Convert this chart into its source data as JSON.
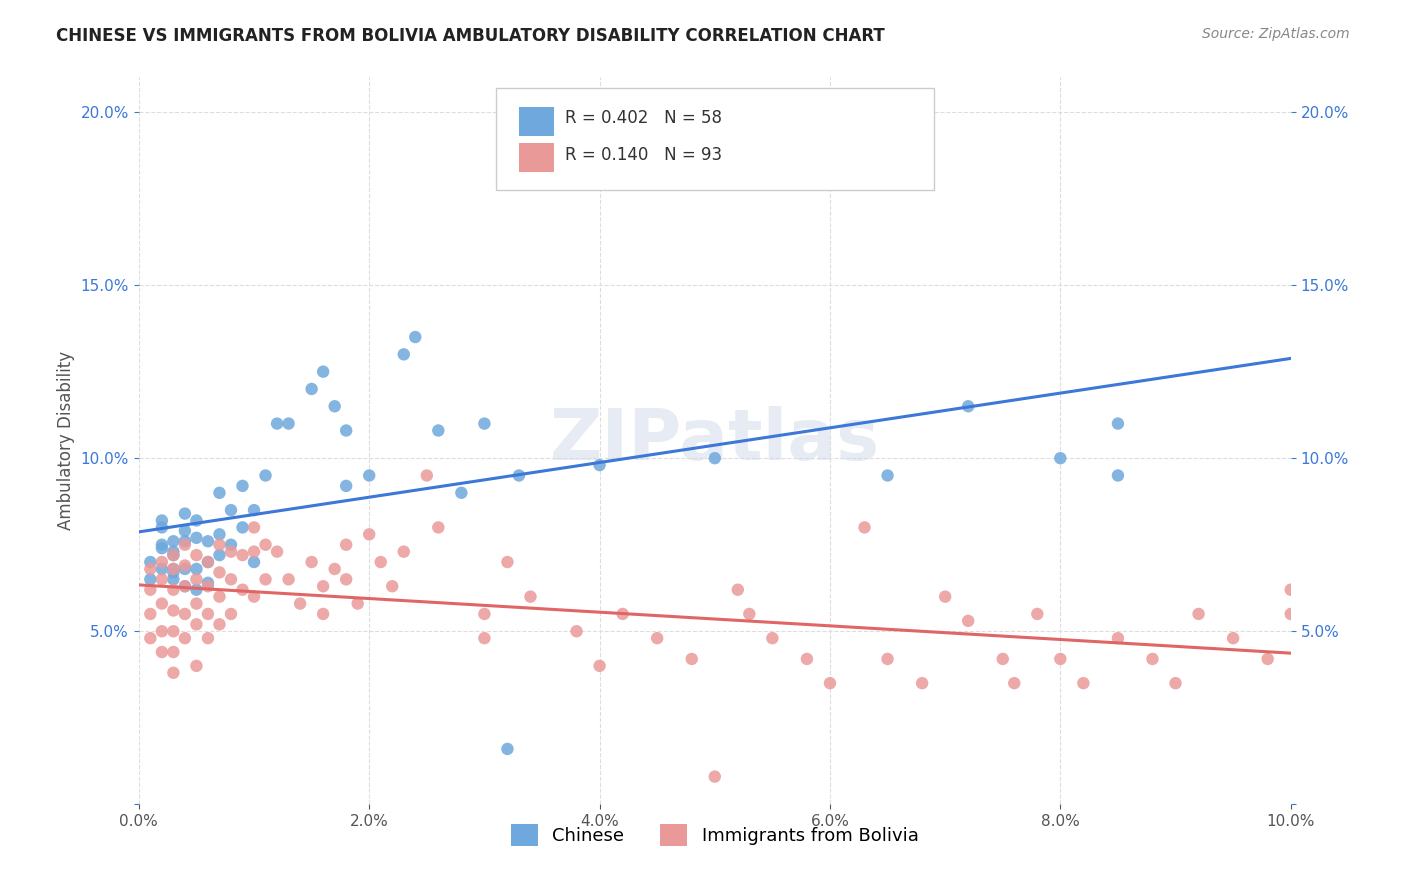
{
  "title": "CHINESE VS IMMIGRANTS FROM BOLIVIA AMBULATORY DISABILITY CORRELATION CHART",
  "source": "Source: ZipAtlas.com",
  "ylabel": "Ambulatory Disability",
  "xlabel": "",
  "watermark": "ZIPatlas",
  "xlim": [
    0.0,
    0.1
  ],
  "ylim": [
    0.0,
    0.21
  ],
  "xticks": [
    0.0,
    0.02,
    0.04,
    0.06,
    0.08,
    0.1
  ],
  "yticks": [
    0.0,
    0.05,
    0.1,
    0.15,
    0.2
  ],
  "xticklabels": [
    "0.0%",
    "2.0%",
    "4.0%",
    "6.0%",
    "8.0%",
    "10.0%"
  ],
  "yticklabels": [
    "",
    "5.0%",
    "10.0%",
    "15.0%",
    "20.0%"
  ],
  "legend1_label": "Chinese",
  "legend2_label": "Immigrants from Bolivia",
  "blue_R": "0.402",
  "blue_N": "58",
  "pink_R": "0.140",
  "pink_N": "93",
  "blue_color": "#6fa8dc",
  "pink_color": "#ea9999",
  "blue_line_color": "#3c78d8",
  "pink_line_color": "#e06666",
  "background_color": "#ffffff",
  "grid_color": "#dddddd",
  "blue_scatter_x": [
    0.001,
    0.001,
    0.002,
    0.002,
    0.002,
    0.002,
    0.002,
    0.003,
    0.003,
    0.003,
    0.003,
    0.003,
    0.003,
    0.004,
    0.004,
    0.004,
    0.004,
    0.004,
    0.005,
    0.005,
    0.005,
    0.005,
    0.006,
    0.006,
    0.006,
    0.007,
    0.007,
    0.007,
    0.008,
    0.008,
    0.009,
    0.009,
    0.01,
    0.01,
    0.011,
    0.012,
    0.013,
    0.015,
    0.016,
    0.017,
    0.018,
    0.018,
    0.02,
    0.023,
    0.024,
    0.026,
    0.028,
    0.03,
    0.032,
    0.033,
    0.04,
    0.048,
    0.05,
    0.065,
    0.072,
    0.08,
    0.085,
    0.085
  ],
  "blue_scatter_y": [
    0.07,
    0.065,
    0.075,
    0.08,
    0.082,
    0.074,
    0.068,
    0.072,
    0.076,
    0.068,
    0.065,
    0.073,
    0.067,
    0.079,
    0.084,
    0.076,
    0.068,
    0.063,
    0.082,
    0.077,
    0.068,
    0.062,
    0.076,
    0.07,
    0.064,
    0.09,
    0.078,
    0.072,
    0.085,
    0.075,
    0.092,
    0.08,
    0.085,
    0.07,
    0.095,
    0.11,
    0.11,
    0.12,
    0.125,
    0.115,
    0.108,
    0.092,
    0.095,
    0.13,
    0.135,
    0.108,
    0.09,
    0.11,
    0.016,
    0.095,
    0.098,
    0.18,
    0.1,
    0.095,
    0.115,
    0.1,
    0.095,
    0.11
  ],
  "pink_scatter_x": [
    0.001,
    0.001,
    0.001,
    0.001,
    0.002,
    0.002,
    0.002,
    0.002,
    0.002,
    0.003,
    0.003,
    0.003,
    0.003,
    0.003,
    0.003,
    0.003,
    0.004,
    0.004,
    0.004,
    0.004,
    0.004,
    0.005,
    0.005,
    0.005,
    0.005,
    0.005,
    0.006,
    0.006,
    0.006,
    0.006,
    0.007,
    0.007,
    0.007,
    0.007,
    0.008,
    0.008,
    0.008,
    0.009,
    0.009,
    0.01,
    0.01,
    0.01,
    0.011,
    0.011,
    0.012,
    0.013,
    0.014,
    0.015,
    0.016,
    0.016,
    0.017,
    0.018,
    0.018,
    0.019,
    0.02,
    0.021,
    0.022,
    0.023,
    0.025,
    0.026,
    0.03,
    0.03,
    0.032,
    0.034,
    0.038,
    0.04,
    0.042,
    0.045,
    0.048,
    0.05,
    0.052,
    0.053,
    0.055,
    0.058,
    0.06,
    0.063,
    0.065,
    0.068,
    0.07,
    0.072,
    0.075,
    0.076,
    0.078,
    0.08,
    0.082,
    0.085,
    0.088,
    0.09,
    0.092,
    0.095,
    0.098,
    0.1,
    0.1
  ],
  "pink_scatter_y": [
    0.068,
    0.062,
    0.055,
    0.048,
    0.07,
    0.065,
    0.058,
    0.05,
    0.044,
    0.072,
    0.068,
    0.062,
    0.056,
    0.05,
    0.044,
    0.038,
    0.075,
    0.069,
    0.063,
    0.055,
    0.048,
    0.072,
    0.065,
    0.058,
    0.052,
    0.04,
    0.07,
    0.063,
    0.055,
    0.048,
    0.075,
    0.067,
    0.06,
    0.052,
    0.073,
    0.065,
    0.055,
    0.072,
    0.062,
    0.08,
    0.073,
    0.06,
    0.075,
    0.065,
    0.073,
    0.065,
    0.058,
    0.07,
    0.063,
    0.055,
    0.068,
    0.075,
    0.065,
    0.058,
    0.078,
    0.07,
    0.063,
    0.073,
    0.095,
    0.08,
    0.055,
    0.048,
    0.07,
    0.06,
    0.05,
    0.04,
    0.055,
    0.048,
    0.042,
    0.008,
    0.062,
    0.055,
    0.048,
    0.042,
    0.035,
    0.08,
    0.042,
    0.035,
    0.06,
    0.053,
    0.042,
    0.035,
    0.055,
    0.042,
    0.035,
    0.048,
    0.042,
    0.035,
    0.055,
    0.048,
    0.042,
    0.062,
    0.055
  ]
}
